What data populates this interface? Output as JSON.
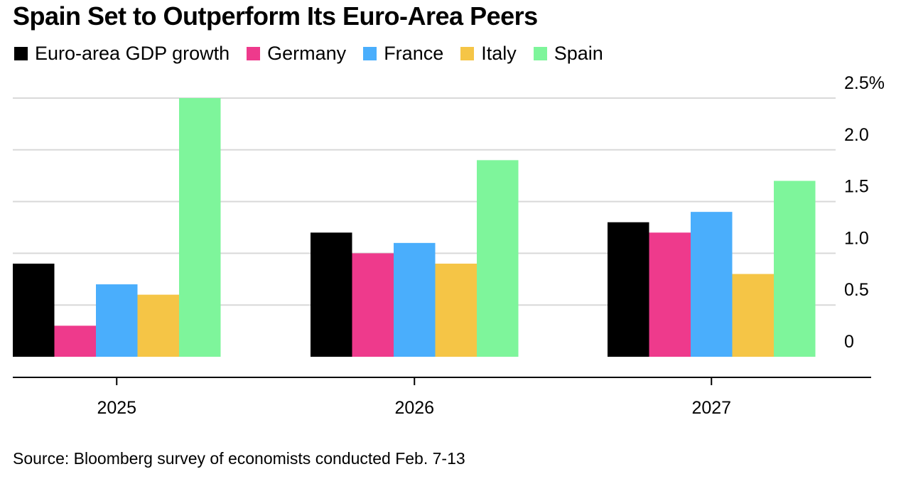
{
  "title": "Spain Set to Outperform Its Euro-Area Peers",
  "source": "Source: Bloomberg survey of economists conducted Feb. 7-13",
  "chart_data": {
    "type": "bar",
    "categories": [
      "2025",
      "2026",
      "2027"
    ],
    "series": [
      {
        "name": "Euro-area GDP growth",
        "color": "#000000",
        "values": [
          0.9,
          1.2,
          1.3
        ]
      },
      {
        "name": "Germany",
        "color": "#ee3a8c",
        "values": [
          0.3,
          1.0,
          1.2
        ]
      },
      {
        "name": "France",
        "color": "#4aaefc",
        "values": [
          0.7,
          1.1,
          1.4
        ]
      },
      {
        "name": "Italy",
        "color": "#f5c546",
        "values": [
          0.6,
          0.9,
          0.8
        ]
      },
      {
        "name": "Spain",
        "color": "#7ef59b",
        "values": [
          2.5,
          1.9,
          1.7
        ]
      }
    ],
    "y_ticks": [
      {
        "value": 0,
        "label": "0"
      },
      {
        "value": 0.5,
        "label": "0.5"
      },
      {
        "value": 1.0,
        "label": "1.0"
      },
      {
        "value": 1.5,
        "label": "1.5"
      },
      {
        "value": 2.0,
        "label": "2.0"
      },
      {
        "value": 2.5,
        "label": "2.5%"
      }
    ],
    "ylim": [
      0,
      2.5
    ],
    "grid": true,
    "legend_position": "top-left",
    "y_axis_position": "right"
  }
}
